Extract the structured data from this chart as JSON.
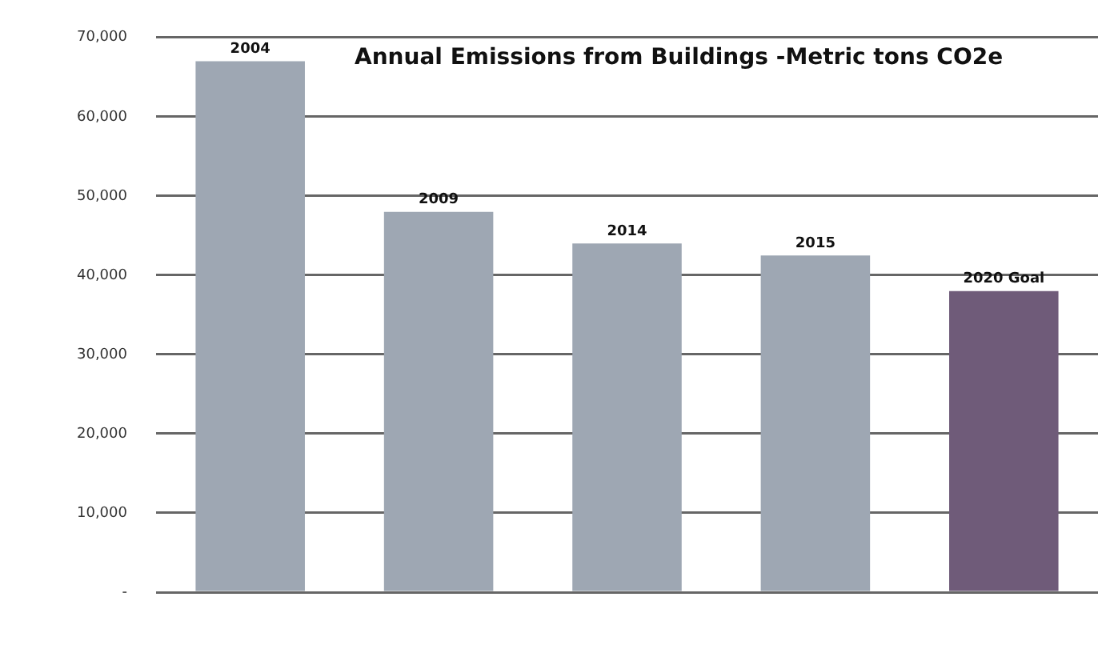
{
  "chart_data": {
    "type": "bar",
    "title": "Annual Emissions from Buildings -Metric tons CO2e",
    "categories": [
      "2004",
      "2009",
      "2014",
      "2015",
      "2020 Goal"
    ],
    "values": [
      67000,
      48000,
      44000,
      42500,
      38000
    ],
    "colors": [
      "#9ea7b3",
      "#9ea7b3",
      "#9ea7b3",
      "#9ea7b3",
      "#6f5b79"
    ],
    "ylim": [
      0,
      70000
    ],
    "yticks": [
      {
        "value": 0,
        "label": "-"
      },
      {
        "value": 10000,
        "label": "10,000"
      },
      {
        "value": 20000,
        "label": "20,000"
      },
      {
        "value": 30000,
        "label": "30,000"
      },
      {
        "value": 40000,
        "label": "40,000"
      },
      {
        "value": 50000,
        "label": "50,000"
      },
      {
        "value": 60000,
        "label": "60,000"
      },
      {
        "value": 70000,
        "label": "70,000"
      }
    ],
    "grid": "y",
    "tick_labels": "y"
  }
}
